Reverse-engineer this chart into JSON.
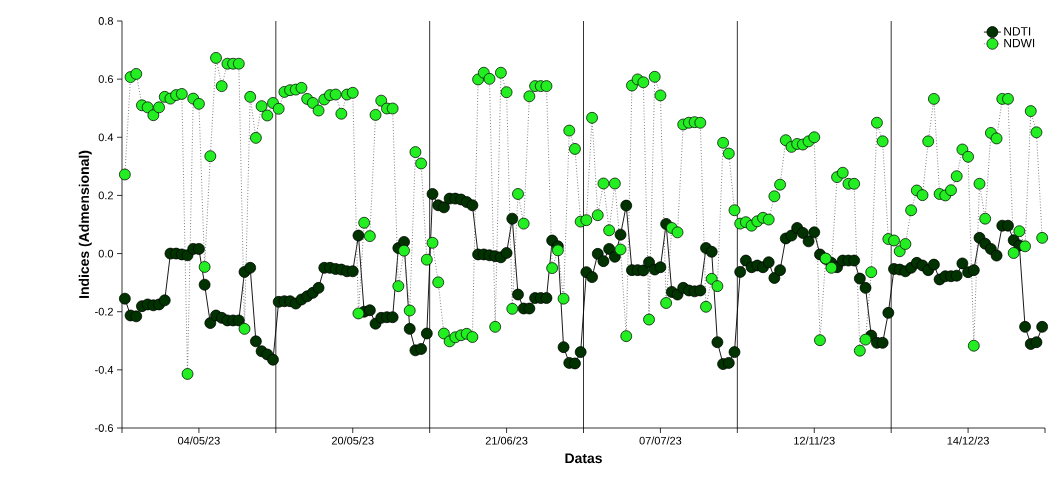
{
  "chart_data": {
    "type": "line",
    "xlabel": "Datas",
    "ylabel": "Indices (Admensional)",
    "categories": [
      null,
      null,
      null,
      null,
      null,
      null,
      null,
      null,
      null,
      null,
      null,
      null,
      null,
      "04/05/23",
      null,
      null,
      null,
      null,
      null,
      null,
      null,
      null,
      null,
      null,
      null,
      null,
      null,
      null,
      null,
      null,
      null,
      null,
      null,
      null,
      null,
      null,
      null,
      null,
      null,
      null,
      "20/05/23",
      null,
      null,
      null,
      null,
      null,
      null,
      null,
      null,
      null,
      null,
      null,
      null,
      null,
      null,
      null,
      null,
      null,
      null,
      null,
      null,
      null,
      null,
      null,
      null,
      null,
      null,
      "21/06/23",
      null,
      null,
      null,
      null,
      null,
      null,
      null,
      null,
      null,
      null,
      null,
      null,
      null,
      null,
      null,
      null,
      null,
      null,
      null,
      null,
      null,
      null,
      null,
      null,
      null,
      null,
      "07/07/23",
      null,
      null,
      null,
      null,
      null,
      null,
      null,
      null,
      null,
      null,
      null,
      null,
      null,
      null,
      null,
      null,
      null,
      null,
      null,
      null,
      null,
      null,
      null,
      null,
      null,
      null,
      "12/11/23",
      null,
      null,
      null,
      null,
      null,
      null,
      null,
      null,
      null,
      null,
      null,
      null,
      null,
      null,
      null,
      null,
      null,
      null,
      null,
      null,
      null,
      null,
      null,
      null,
      null,
      null,
      "14/12/23",
      null,
      null,
      null,
      null,
      null,
      null,
      null,
      null,
      null,
      null,
      null,
      null,
      null
    ],
    "ylim": [
      -0.6,
      0.8
    ],
    "yticks": [
      -0.6,
      -0.4,
      -0.2,
      {
        "value": 0,
        "label": "0.0"
      },
      0.2,
      0.4,
      0.6,
      0.8
    ],
    "legend": "top right",
    "marker": "circle",
    "series": [
      {
        "name": "NDTI",
        "color": "#003300",
        "line_style": "solid",
        "values": [
          -0.155,
          -0.213,
          -0.216,
          -0.181,
          -0.175,
          -0.178,
          -0.175,
          -0.161,
          0.0,
          0.0,
          -0.003,
          -0.006,
          0.016,
          0.016,
          -0.107,
          -0.239,
          -0.213,
          -0.221,
          -0.23,
          -0.23,
          -0.23,
          -0.063,
          -0.049,
          -0.302,
          -0.336,
          -0.347,
          -0.365,
          -0.166,
          -0.164,
          -0.164,
          -0.172,
          -0.158,
          -0.147,
          -0.135,
          -0.118,
          -0.049,
          -0.049,
          -0.053,
          -0.055,
          -0.061,
          -0.061,
          0.062,
          -0.2,
          -0.195,
          -0.241,
          -0.221,
          -0.219,
          -0.219,
          0.019,
          0.04,
          -0.259,
          -0.333,
          -0.328,
          -0.275,
          0.205,
          0.166,
          0.159,
          0.189,
          0.189,
          0.186,
          0.177,
          0.166,
          -0.003,
          -0.003,
          -0.006,
          -0.009,
          -0.013,
          0.002,
          0.12,
          -0.141,
          -0.189,
          -0.189,
          -0.153,
          -0.153,
          -0.153,
          0.045,
          0.025,
          -0.322,
          -0.376,
          -0.378,
          -0.339,
          -0.064,
          -0.081,
          -0.001,
          -0.026,
          0.016,
          -0.011,
          0.065,
          0.165,
          -0.057,
          -0.057,
          -0.058,
          -0.03,
          -0.055,
          -0.047,
          0.102,
          -0.132,
          -0.141,
          -0.118,
          -0.127,
          -0.13,
          -0.127,
          0.019,
          0.006,
          -0.305,
          -0.38,
          -0.376,
          -0.339,
          -0.063,
          -0.024,
          -0.047,
          -0.041,
          -0.047,
          -0.03,
          -0.084,
          -0.057,
          0.052,
          0.062,
          0.088,
          0.071,
          0.042,
          0.073,
          -0.003,
          -0.018,
          -0.032,
          -0.047,
          -0.024,
          -0.024,
          -0.024,
          -0.086,
          -0.118,
          -0.282,
          -0.307,
          -0.307,
          -0.204,
          -0.053,
          -0.055,
          -0.061,
          -0.049,
          -0.032,
          -0.041,
          -0.057,
          -0.038,
          -0.089,
          -0.078,
          -0.078,
          -0.076,
          -0.034,
          -0.064,
          -0.057,
          0.054,
          0.034,
          0.016,
          -0.007,
          0.096,
          0.096,
          0.046,
          0.028,
          -0.252,
          -0.311,
          -0.305,
          -0.252
        ]
      },
      {
        "name": "NDWI",
        "color": "#22ee22",
        "line_style": "dotted",
        "values": [
          0.272,
          0.607,
          0.618,
          0.51,
          0.503,
          0.476,
          0.503,
          0.539,
          0.533,
          0.545,
          0.549,
          -0.414,
          0.533,
          0.515,
          -0.046,
          0.335,
          0.673,
          0.576,
          0.653,
          0.653,
          0.653,
          -0.259,
          0.539,
          0.398,
          0.507,
          0.475,
          0.518,
          0.498,
          0.556,
          0.562,
          0.564,
          0.57,
          0.532,
          0.518,
          0.492,
          0.53,
          0.545,
          0.547,
          0.481,
          0.547,
          0.553,
          -0.206,
          0.106,
          0.06,
          0.477,
          0.526,
          0.499,
          0.499,
          -0.112,
          0.01,
          -0.196,
          0.349,
          0.31,
          -0.021,
          0.037,
          -0.099,
          -0.275,
          -0.302,
          -0.288,
          -0.281,
          -0.276,
          -0.287,
          0.599,
          0.622,
          0.601,
          -0.252,
          0.622,
          0.555,
          -0.19,
          0.205,
          0.103,
          0.541,
          0.576,
          0.576,
          0.576,
          -0.05,
          0.011,
          -0.155,
          0.423,
          0.36,
          0.11,
          0.115,
          0.467,
          0.132,
          0.241,
          0.08,
          0.241,
          0.014,
          -0.284,
          0.578,
          0.599,
          0.589,
          -0.227,
          0.608,
          0.544,
          -0.17,
          0.088,
          0.073,
          0.444,
          0.45,
          0.452,
          0.45,
          -0.183,
          -0.087,
          -0.112,
          0.381,
          0.344,
          0.149,
          0.103,
          0.108,
          0.096,
          0.111,
          0.123,
          0.117,
          0.197,
          0.237,
          0.39,
          0.367,
          0.377,
          0.375,
          0.386,
          0.4,
          -0.298,
          -0.017,
          -0.049,
          0.263,
          0.278,
          0.24,
          0.24,
          -0.334,
          -0.296,
          -0.064,
          0.45,
          0.386,
          0.05,
          0.045,
          0.008,
          0.033,
          0.149,
          0.217,
          0.201,
          0.386,
          0.532,
          0.205,
          0.2,
          0.218,
          0.266,
          0.358,
          0.333,
          -0.317,
          0.24,
          0.12,
          0.415,
          0.396,
          0.532,
          0.532,
          0.002,
          0.077,
          0.025,
          0.49,
          0.417,
          0.054
        ]
      }
    ]
  }
}
